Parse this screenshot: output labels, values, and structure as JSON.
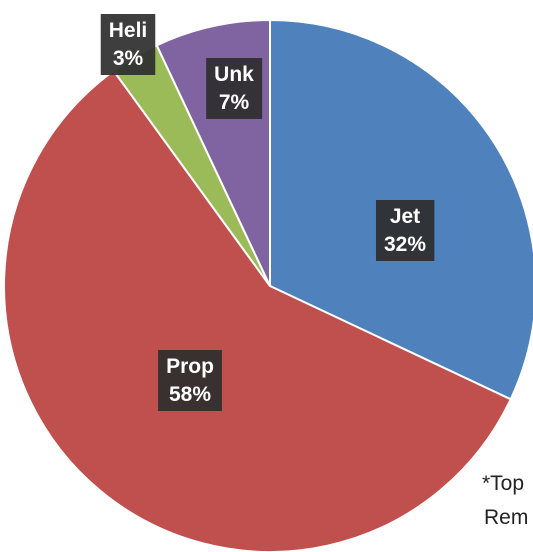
{
  "chart_data": {
    "type": "pie",
    "slices": [
      {
        "category": "Jet",
        "label": "32%",
        "value": 32,
        "color": "#4f81bd"
      },
      {
        "category": "Prop",
        "label": "58%",
        "value": 58,
        "color": "#c0504d"
      },
      {
        "category": "Heli",
        "label": "3%",
        "value": 3,
        "color": "#9bbb59"
      },
      {
        "category": "Unk",
        "label": "7%",
        "value": 7,
        "color": "#8064a2"
      }
    ],
    "data_labels": "category and percentage in dark boxes",
    "legend": "none"
  },
  "footnote": {
    "line1": "*Top",
    "line2": "Rem"
  }
}
